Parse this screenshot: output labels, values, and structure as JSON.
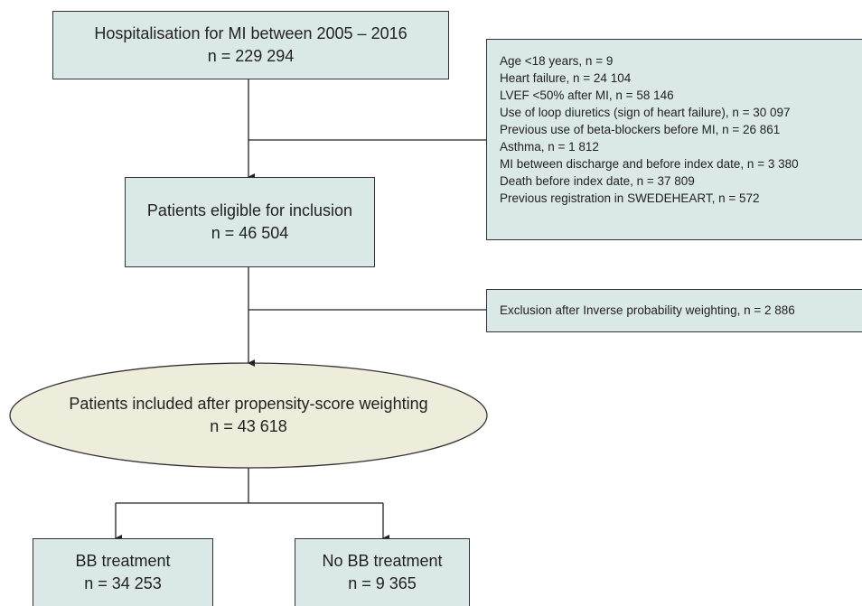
{
  "nodes": [
    {
      "label": "Hospitalisation for MI between 2005 – 2016",
      "count": "n = 229 294"
    },
    {
      "label": "Patients eligible for inclusion",
      "count": "n = 46 504"
    },
    {
      "label": "Patients included after propensity-score weighting",
      "count": "n = 43 618"
    },
    {
      "label": "BB treatment",
      "count": "n = 34 253"
    },
    {
      "label": "No BB treatment",
      "count": "n = 9 365"
    }
  ],
  "exclusions": [
    {
      "items": [
        "Age <18 years, n = 9",
        "Heart failure, n = 24 104",
        "LVEF <50% after MI, n = 58 146",
        "Use of loop diuretics (sign of heart failure), n = 30 097",
        "Previous use of beta-blockers before MI, n = 26 861",
        "Asthma, n = 1 812",
        "MI between discharge and before index date, n = 3 380",
        "Death before index date, n = 37 809",
        "Previous registration in SWEDEHEART, n = 572"
      ]
    },
    {
      "items": [
        "Exclusion after Inverse probability weighting, n = 2 886"
      ]
    }
  ]
}
